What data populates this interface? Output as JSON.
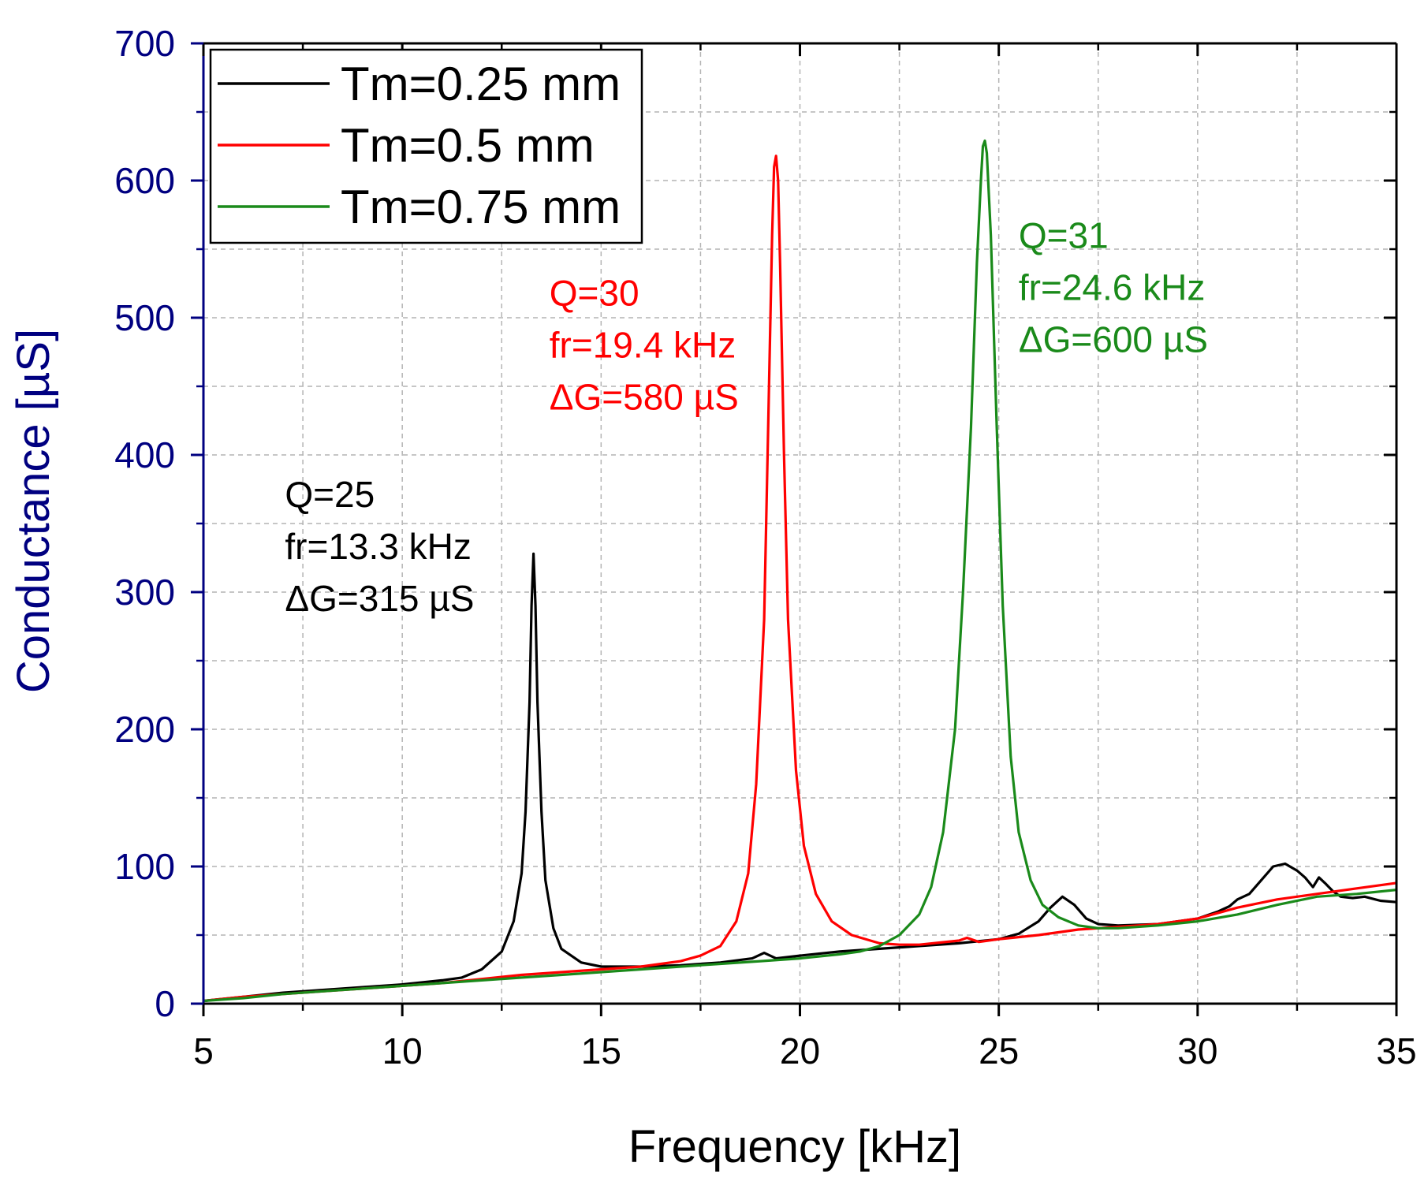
{
  "chart_data": {
    "type": "line",
    "title": "",
    "xlabel": "Frequency [kHz]",
    "ylabel": "Conductance [µS]",
    "xlim": [
      5,
      35
    ],
    "ylim": [
      0,
      700
    ],
    "xticks": [
      5,
      10,
      15,
      20,
      25,
      30,
      35
    ],
    "yticks": [
      0,
      100,
      200,
      300,
      400,
      500,
      600,
      700
    ],
    "x_tick_labels": [
      "5",
      "10",
      "15",
      "20",
      "25",
      "30",
      "35"
    ],
    "y_tick_labels": [
      "0",
      "100",
      "200",
      "300",
      "400",
      "500",
      "600",
      "700"
    ],
    "grid": true,
    "legend_position": "top-left",
    "colors": {
      "axis_left": "#000080",
      "axis_other": "#000000",
      "grid": "#b4b4b4"
    },
    "series": [
      {
        "name": "Tm=0.25 mm",
        "color": "#000000",
        "x": [
          5,
          6,
          7,
          8,
          9,
          10,
          11,
          11.5,
          12,
          12.5,
          12.8,
          13.0,
          13.1,
          13.2,
          13.25,
          13.3,
          13.35,
          13.4,
          13.5,
          13.6,
          13.8,
          14.0,
          14.5,
          15,
          16,
          17,
          18,
          18.8,
          19.1,
          19.4,
          20,
          21,
          22,
          23,
          24,
          25,
          25.5,
          26,
          26.3,
          26.6,
          26.9,
          27.2,
          27.5,
          28,
          29,
          30,
          30.5,
          30.8,
          31.0,
          31.3,
          31.6,
          31.9,
          32.2,
          32.5,
          32.7,
          32.9,
          33.05,
          33.2,
          33.4,
          33.6,
          33.9,
          34.2,
          34.6,
          35
        ],
        "values": [
          2,
          5,
          8,
          10,
          12,
          14,
          17,
          19,
          25,
          38,
          60,
          95,
          140,
          220,
          290,
          328,
          290,
          220,
          140,
          90,
          55,
          40,
          30,
          27,
          27,
          28,
          30,
          33,
          37,
          33,
          35,
          38,
          40,
          42,
          44,
          47,
          51,
          60,
          70,
          78,
          72,
          62,
          58,
          57,
          58,
          62,
          67,
          71,
          76,
          80,
          90,
          100,
          102,
          97,
          92,
          85,
          92,
          88,
          82,
          78,
          77,
          78,
          75,
          74
        ]
      },
      {
        "name": "Tm=0.5 mm",
        "color": "#ff0000",
        "x": [
          5,
          6,
          7,
          8,
          9,
          10,
          11,
          12,
          13,
          14,
          15,
          16,
          17,
          17.5,
          18,
          18.4,
          18.7,
          18.9,
          19.1,
          19.2,
          19.3,
          19.35,
          19.4,
          19.45,
          19.5,
          19.6,
          19.7,
          19.9,
          20.1,
          20.4,
          20.8,
          21.3,
          22,
          22.5,
          23,
          24,
          24.2,
          24.5,
          25,
          26,
          27,
          28,
          29,
          30,
          31,
          32,
          33,
          34,
          35
        ],
        "values": [
          2,
          5,
          7,
          9,
          11,
          13,
          15,
          18,
          21,
          23,
          25,
          27,
          31,
          35,
          42,
          60,
          95,
          160,
          280,
          420,
          560,
          610,
          618,
          600,
          540,
          400,
          280,
          170,
          115,
          80,
          60,
          50,
          44,
          43,
          43,
          46,
          48,
          45,
          47,
          50,
          54,
          56,
          58,
          62,
          70,
          76,
          80,
          84,
          88
        ]
      },
      {
        "name": "Tm=0.75 mm",
        "color": "#1a8a1a",
        "x": [
          5,
          6,
          7,
          8,
          9,
          10,
          11,
          12,
          13,
          14,
          15,
          16,
          17,
          18,
          19,
          20,
          21,
          21.5,
          22,
          22.5,
          23,
          23.3,
          23.6,
          23.9,
          24.1,
          24.3,
          24.45,
          24.55,
          24.6,
          24.65,
          24.7,
          24.8,
          24.95,
          25.1,
          25.3,
          25.5,
          25.8,
          26.1,
          26.5,
          27,
          27.5,
          28,
          29,
          30,
          31,
          32,
          33,
          34,
          35
        ],
        "values": [
          2,
          4,
          7,
          9,
          11,
          13,
          15,
          17,
          19,
          21,
          23,
          25,
          27,
          29,
          31,
          33,
          36,
          38,
          42,
          50,
          65,
          85,
          125,
          200,
          300,
          420,
          540,
          600,
          625,
          629,
          620,
          560,
          420,
          290,
          180,
          125,
          90,
          72,
          63,
          57,
          55,
          55,
          57,
          60,
          65,
          72,
          78,
          80,
          83
        ]
      }
    ],
    "annotations": [
      {
        "series": "Tm=0.25 mm",
        "color": "#000000",
        "lines": [
          "Q=25",
          "fr=13.3 kHz",
          "ΔG=315 µS"
        ]
      },
      {
        "series": "Tm=0.5 mm",
        "color": "#ff0000",
        "lines": [
          "Q=30",
          "fr=19.4 kHz",
          "ΔG=580 µS"
        ]
      },
      {
        "series": "Tm=0.75 mm",
        "color": "#1a8a1a",
        "lines": [
          "Q=31",
          "fr=24.6 kHz",
          "ΔG=600 µS"
        ]
      }
    ]
  }
}
